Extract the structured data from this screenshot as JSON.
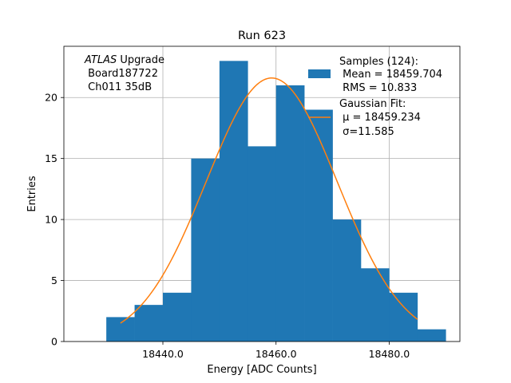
{
  "chart_data": {
    "type": "bar",
    "title": "Run 623",
    "xlabel": "Energy [ADC Counts]",
    "ylabel": "Entries",
    "xlim": [
      18422.5,
      18492.5
    ],
    "ylim": [
      0,
      24.2
    ],
    "xticks": [
      18440.0,
      18460.0,
      18480.0
    ],
    "xtick_labels": [
      "18440.0",
      "18460.0",
      "18480.0"
    ],
    "yticks": [
      0,
      5,
      10,
      15,
      20
    ],
    "ytick_labels": [
      "0",
      "5",
      "10",
      "15",
      "20"
    ],
    "grid": true,
    "bin_width": 5,
    "bins": [
      {
        "x_start": 18430,
        "count": 2
      },
      {
        "x_start": 18435,
        "count": 3
      },
      {
        "x_start": 18440,
        "count": 4
      },
      {
        "x_start": 18445,
        "count": 15
      },
      {
        "x_start": 18450,
        "count": 23
      },
      {
        "x_start": 18455,
        "count": 16
      },
      {
        "x_start": 18460,
        "count": 21
      },
      {
        "x_start": 18465,
        "count": 19
      },
      {
        "x_start": 18470,
        "count": 10
      },
      {
        "x_start": 18475,
        "count": 6
      },
      {
        "x_start": 18480,
        "count": 4
      },
      {
        "x_start": 18485,
        "count": 1
      }
    ],
    "fit": {
      "type": "gaussian",
      "mu": 18459.234,
      "sigma": 11.585,
      "peak": 21.6,
      "x_range": [
        18432.5,
        18485
      ]
    },
    "colors": {
      "bars": "#1f77b4",
      "fit": "#ff7f0e",
      "grid": "#b0b0b0"
    },
    "annotation": {
      "italic": "ATLAS",
      "rest": " Upgrade",
      "line2": " Board187722",
      "line3": " Ch011 35dB"
    },
    "legend": {
      "placement": "top-right",
      "samples": {
        "line1": "Samples (124):",
        "line2": " Mean = 18459.704",
        "line3": " RMS = 10.833"
      },
      "fit": {
        "line1": "Gaussian Fit:",
        "line2": " μ = 18459.234",
        "line3": " σ=11.585"
      }
    }
  }
}
